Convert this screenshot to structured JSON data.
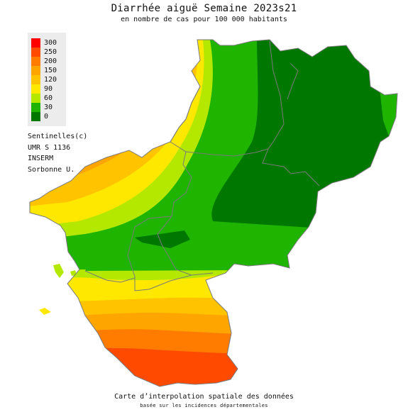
{
  "title": "Diarrhée aiguë Semaine 2023s21",
  "subtitle": "en nombre de cas pour 100 000 habitants",
  "legend": [
    {
      "label": "300",
      "color": "#ff0000"
    },
    {
      "label": "250",
      "color": "#ff4a00"
    },
    {
      "label": "200",
      "color": "#ff7c00"
    },
    {
      "label": "150",
      "color": "#ffa500"
    },
    {
      "label": "120",
      "color": "#ffc300"
    },
    {
      "label": "90",
      "color": "#ffe800"
    },
    {
      "label": "60",
      "color": "#b4e800"
    },
    {
      "label": "30",
      "color": "#1fb400"
    },
    {
      "label": "0",
      "color": "#007800"
    }
  ],
  "credits": [
    "Sentinelles(c)",
    "UMR S 1136",
    "INSERM",
    "Sorbonne U."
  ],
  "footer": {
    "line1": "Carte d’interpolation spatiale des données",
    "line2": "basée sur les incidences départementales"
  }
}
